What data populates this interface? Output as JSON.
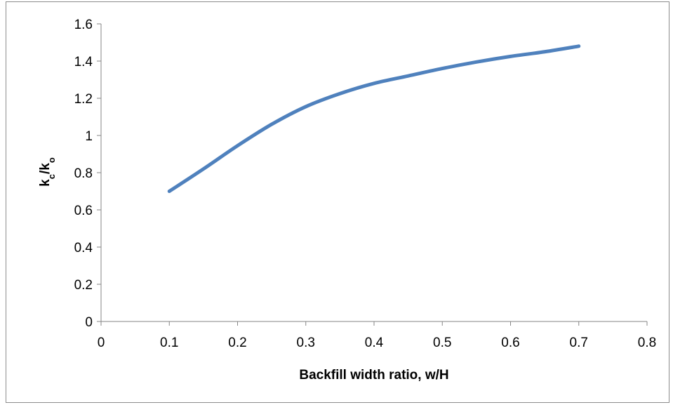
{
  "chart_data": {
    "type": "line",
    "title": "",
    "xlabel": "Backfill width ratio, w/H",
    "ylabel": {
      "base1": "k",
      "sub1": "c",
      "sep": "/",
      "base2": "k",
      "sub2": "o"
    },
    "xlim": [
      0,
      0.8
    ],
    "ylim": [
      0,
      1.6
    ],
    "x_ticks": [
      "0",
      "0.1",
      "0.2",
      "0.3",
      "0.4",
      "0.5",
      "0.6",
      "0.7",
      "0.8"
    ],
    "y_ticks": [
      "0",
      "0.2",
      "0.4",
      "0.6",
      "0.8",
      "1",
      "1.2",
      "1.4",
      "1.6"
    ],
    "grid": false,
    "legend": "none",
    "series": [
      {
        "color": "#4f81bd",
        "x": [
          0.1,
          0.15,
          0.2,
          0.25,
          0.3,
          0.35,
          0.4,
          0.45,
          0.5,
          0.55,
          0.6,
          0.65,
          0.7
        ],
        "y": [
          0.7,
          0.82,
          0.945,
          1.06,
          1.155,
          1.225,
          1.28,
          1.32,
          1.36,
          1.395,
          1.425,
          1.45,
          1.48
        ]
      }
    ]
  }
}
